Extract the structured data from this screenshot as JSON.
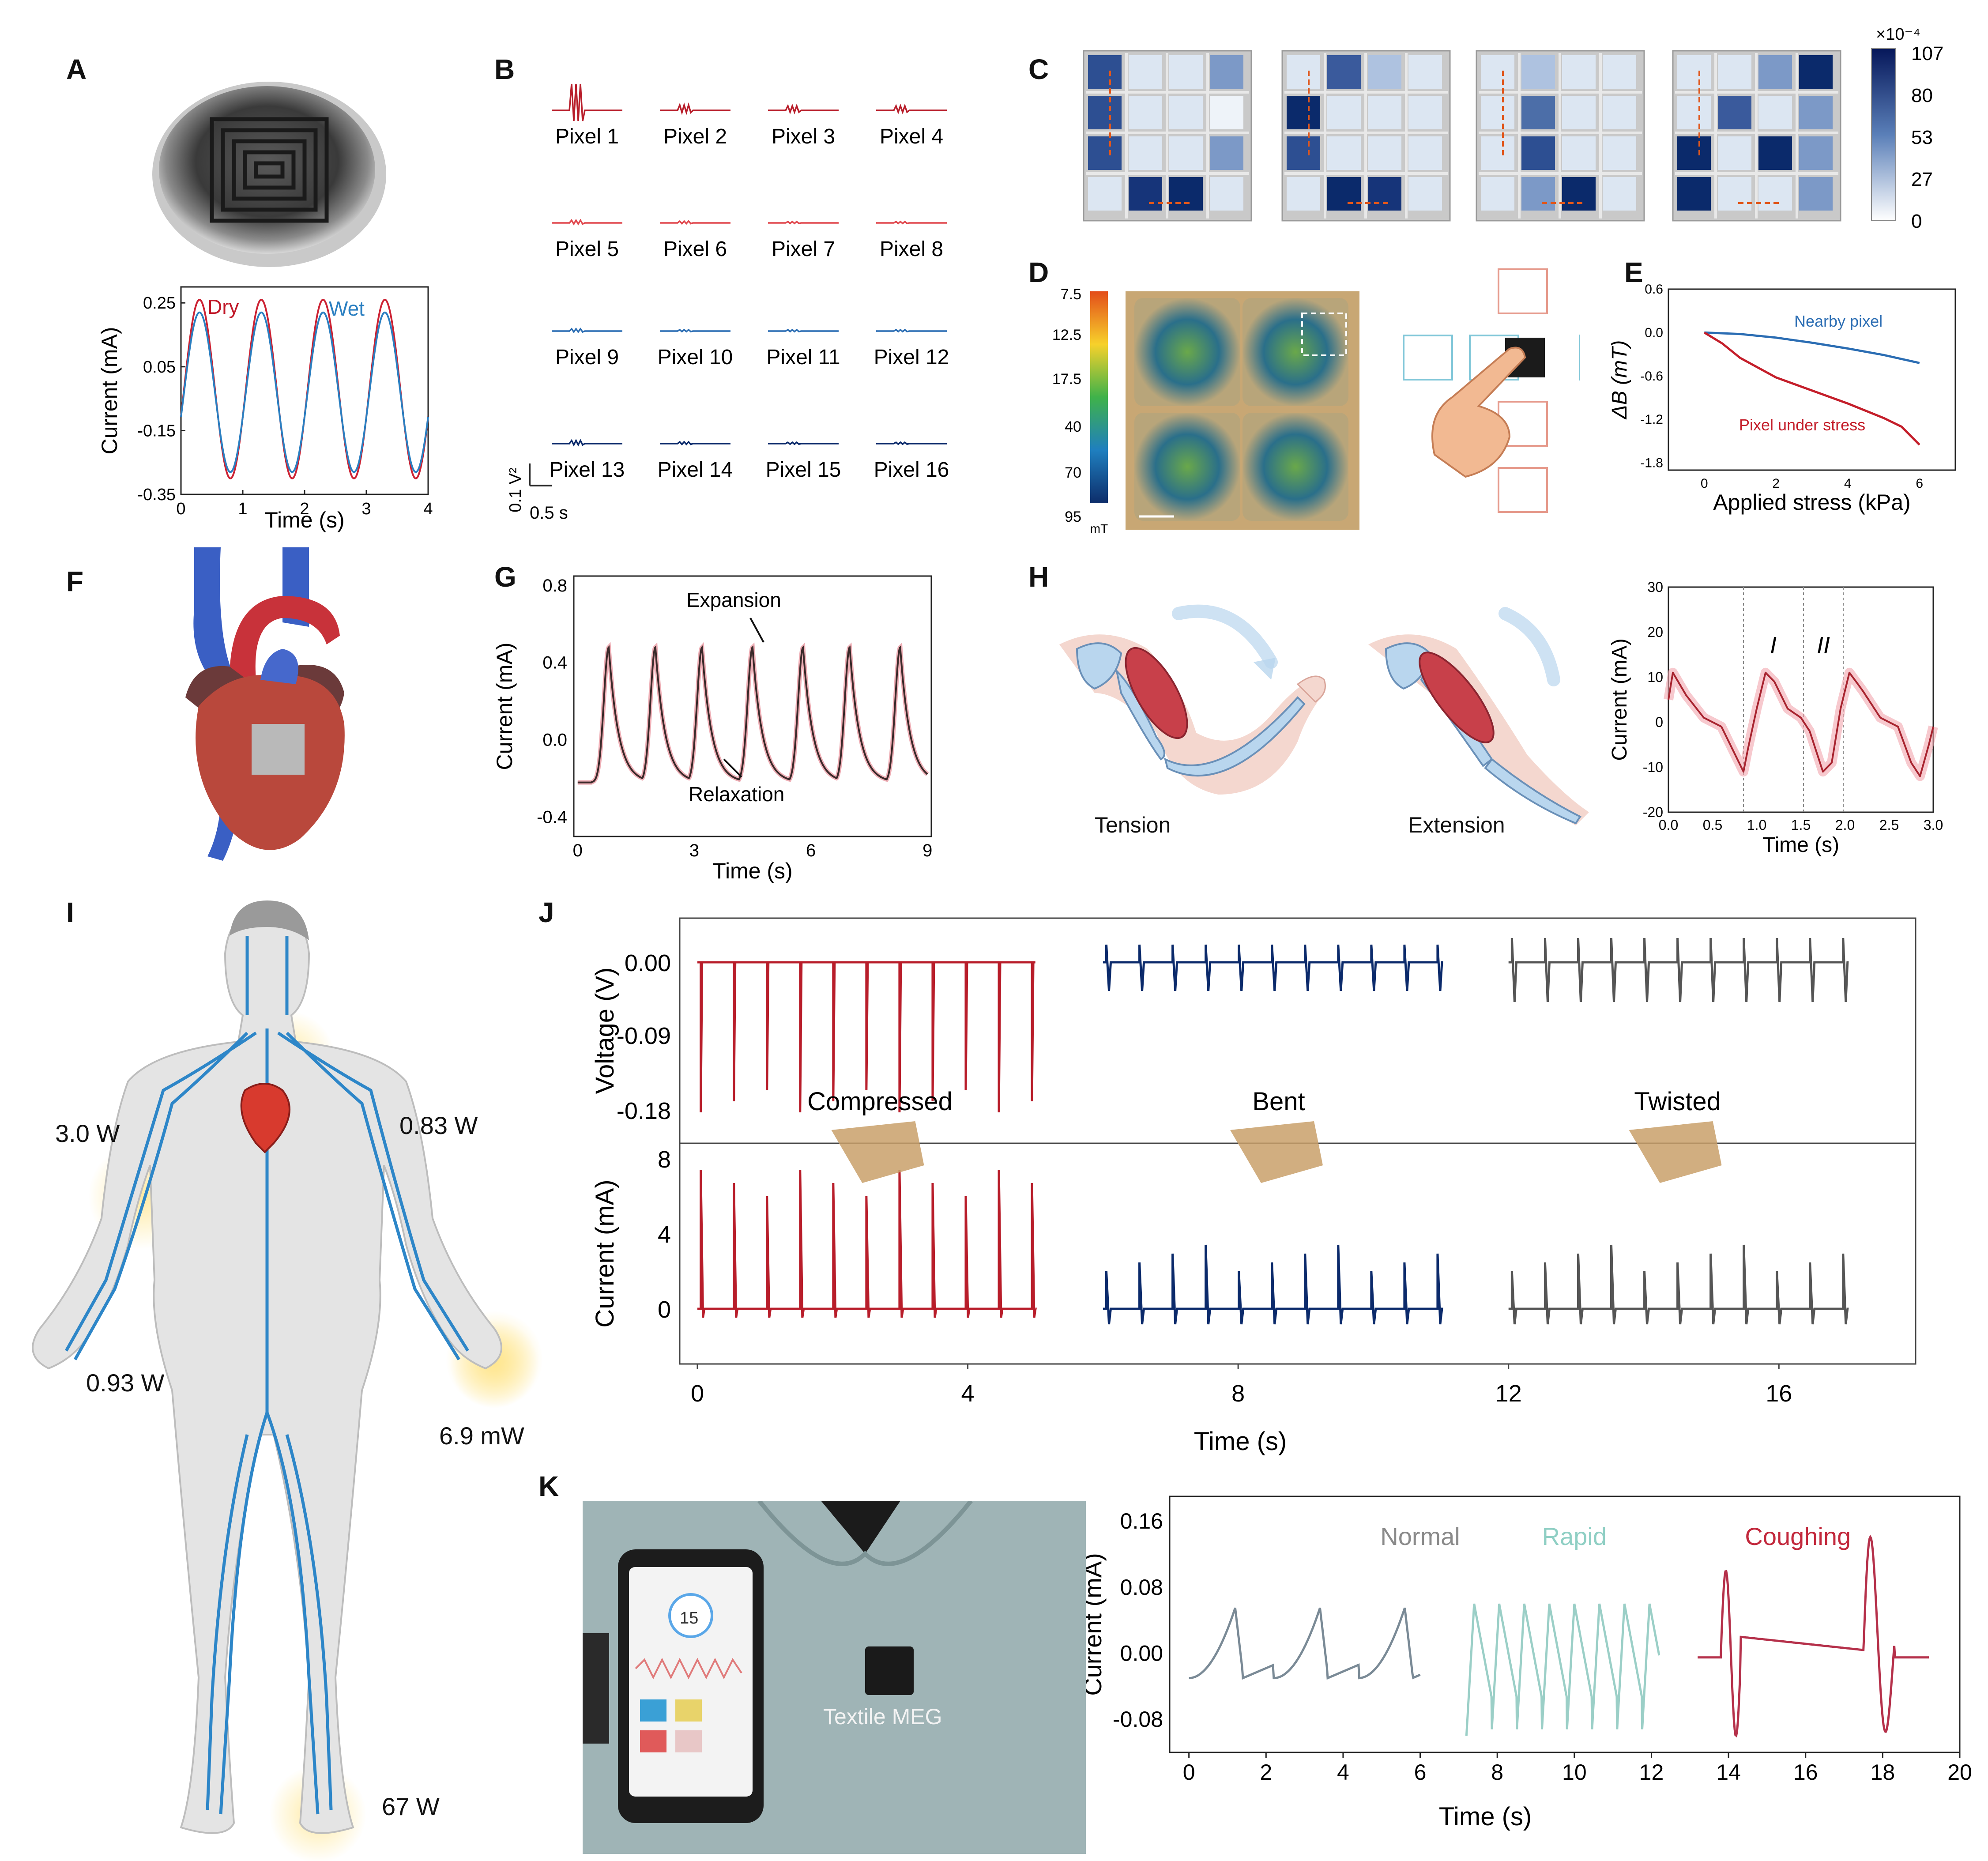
{
  "colors": {
    "dry": "#cc2233",
    "wet": "#2a7fc1",
    "red": "#b81d2a",
    "navy": "#0b2a6b",
    "gray": "#555555",
    "mid": "#2b6db3"
  },
  "labels": {
    "A": "A",
    "B": "B",
    "C": "C",
    "D": "D",
    "E": "E",
    "F": "F",
    "G": "G",
    "H": "H",
    "I": "I",
    "J": "J",
    "K": "K"
  },
  "panelA": {
    "chart_data": {
      "type": "line",
      "xlabel": "Time (s)",
      "ylabel": "Current (mA)",
      "xticks": [
        "0",
        "1",
        "2",
        "3",
        "4"
      ],
      "yticks": [
        "0.25",
        "0.05",
        "-0.15",
        "-0.35"
      ],
      "xlim": [
        0,
        4
      ],
      "ylim": [
        -0.35,
        0.3
      ],
      "series": [
        {
          "name": "Dry",
          "amplitude": 0.28,
          "offset": -0.02,
          "period": 1.0
        },
        {
          "name": "Wet",
          "amplitude": 0.25,
          "offset": -0.03,
          "period": 1.0
        }
      ]
    }
  },
  "panelB": {
    "pixels": [
      "Pixel 1",
      "Pixel 2",
      "Pixel 3",
      "Pixel 4",
      "Pixel 5",
      "Pixel 6",
      "Pixel 7",
      "Pixel 8",
      "Pixel 9",
      "Pixel 10",
      "Pixel 11",
      "Pixel 12",
      "Pixel 13",
      "Pixel 14",
      "Pixel 15",
      "Pixel 16"
    ],
    "scale_v": "0.1 V²",
    "scale_t": "0.5 s"
  },
  "panelC": {
    "colorbar_exp": "×10⁻⁴",
    "colorbar_ticks": [
      "107",
      "80",
      "53",
      "27",
      "0"
    ]
  },
  "panelD": {
    "colorbar_ticks": [
      "7.5",
      "12.5",
      "17.5",
      "40",
      "70",
      "95"
    ],
    "colorbar_unit": "mT"
  },
  "panelE": {
    "chart_data": {
      "type": "line",
      "xlabel": "Applied stress (kPa)",
      "ylabel": "ΔB (mT)",
      "xticks": [
        "0",
        "2",
        "4",
        "6"
      ],
      "yticks": [
        "0.6",
        "0.0",
        "-0.6",
        "-1.2",
        "-1.8"
      ],
      "xlim": [
        -1,
        7
      ],
      "ylim": [
        -1.9,
        0.6
      ],
      "series": [
        {
          "name": "Nearby pixel",
          "x": [
            0,
            1,
            2,
            3,
            4,
            5,
            6
          ],
          "y": [
            0,
            -0.02,
            -0.07,
            -0.14,
            -0.22,
            -0.31,
            -0.42
          ]
        },
        {
          "name": "Pixel under stress",
          "x": [
            0,
            0.5,
            1,
            2,
            3,
            4,
            5,
            5.5,
            6
          ],
          "y": [
            0,
            -0.15,
            -0.35,
            -0.62,
            -0.8,
            -0.98,
            -1.18,
            -1.3,
            -1.55
          ]
        }
      ]
    }
  },
  "panelG": {
    "chart_data": {
      "type": "line",
      "xlabel": "Time (s)",
      "ylabel": "Current (mA)",
      "xticks": [
        "0",
        "3",
        "6",
        "9"
      ],
      "yticks": [
        "0.8",
        "0.4",
        "0.0",
        "-0.4"
      ],
      "xlim": [
        -0.1,
        9.1
      ],
      "ylim": [
        -0.5,
        0.85
      ],
      "peaks_x": [
        0.8,
        2.0,
        3.2,
        4.5,
        5.8,
        7.0,
        8.3
      ],
      "peak_y": 0.48,
      "trough_y": -0.22
    },
    "expansion": "Expansion",
    "relaxation": "Relaxation"
  },
  "panelH": {
    "tension": "Tension",
    "extension": "Extension",
    "chart_data": {
      "type": "line",
      "xlabel": "Time (s)",
      "ylabel": "Current (mA)",
      "xticks": [
        "0.0",
        "0.5",
        "1.0",
        "1.5",
        "2.0",
        "2.5",
        "3.0"
      ],
      "yticks": [
        "30",
        "20",
        "10",
        "0",
        "-10",
        "-20"
      ],
      "xlim": [
        0,
        3
      ],
      "ylim": [
        -20,
        30
      ],
      "x": [
        0,
        0.05,
        0.2,
        0.4,
        0.6,
        0.8,
        0.85,
        0.9,
        1.0,
        1.1,
        1.2,
        1.35,
        1.5,
        1.6,
        1.75,
        1.85,
        1.95,
        2.05,
        2.2,
        2.4,
        2.6,
        2.75,
        2.85,
        2.95,
        3.0
      ],
      "y": [
        5,
        11,
        6,
        1,
        -1,
        -9,
        -11,
        -6,
        3,
        11,
        9,
        3,
        1,
        -2,
        -11,
        -9,
        3,
        11,
        7,
        1,
        -1,
        -9,
        -12,
        -5,
        -1
      ]
    },
    "region1": "I",
    "region2": "II"
  },
  "panelI": {
    "powers": [
      "3.0 W",
      "0.83 W",
      "0.93 W",
      "6.9 mW",
      "67 W"
    ]
  },
  "panelJ": {
    "chart_data": {
      "type": "line",
      "xlabel": "Time (s)",
      "top_ylabel": "Voltage (V)",
      "top_yticks": [
        "0.00",
        "-0.09",
        "-0.18"
      ],
      "bottom_ylabel": "Current (mA)",
      "bottom_yticks": [
        "8",
        "4",
        "0"
      ],
      "xticks": [
        "0",
        "4",
        "8",
        "12",
        "16"
      ],
      "xlim": [
        0,
        17.5
      ]
    },
    "states": [
      "Compressed",
      "Bent",
      "Twisted"
    ]
  },
  "panelK": {
    "photo_caption": "Textile MEG",
    "phone_value": "15",
    "chart_data": {
      "type": "line",
      "xlabel": "Time (s)",
      "ylabel": "Current (mA)",
      "xticks": [
        "0",
        "2",
        "4",
        "6",
        "8",
        "10",
        "12",
        "14",
        "16",
        "18",
        "20"
      ],
      "yticks": [
        "0.16",
        "0.08",
        "0.00",
        "-0.08"
      ],
      "xlim": [
        -0.5,
        20
      ],
      "ylim": [
        -0.12,
        0.19
      ]
    },
    "modes": [
      "Normal",
      "Rapid",
      "Coughing"
    ]
  }
}
